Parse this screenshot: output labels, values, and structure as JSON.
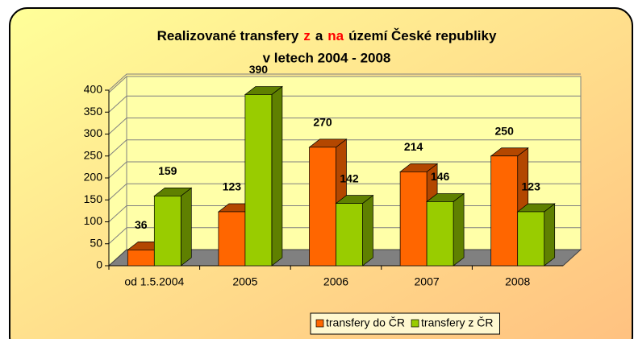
{
  "chart_data": {
    "type": "bar3d",
    "title": {
      "segments": [
        {
          "text": "Realizované transfery"
        },
        {
          "text": "z",
          "color": "#ff0000"
        },
        {
          "text": "a"
        },
        {
          "text": "na",
          "color": "#ff0000"
        },
        {
          "text": "území České republiky"
        }
      ],
      "line2": "v letech 2004 - 2008"
    },
    "categories": [
      "od 1.5.2004",
      "2005",
      "2006",
      "2007",
      "2008"
    ],
    "series": [
      {
        "name": "transfery do ČR",
        "color": "#ff6600",
        "side": "#b34700",
        "values": [
          36,
          123,
          270,
          214,
          250
        ]
      },
      {
        "name": "transfery z ČR",
        "color": "#99cc00",
        "side": "#5f8000",
        "values": [
          159,
          390,
          142,
          146,
          123
        ]
      }
    ],
    "ylim": [
      0,
      400
    ],
    "yticks": [
      0,
      50,
      100,
      150,
      200,
      250,
      300,
      350,
      400
    ],
    "grid": true,
    "legend": "bottom"
  }
}
